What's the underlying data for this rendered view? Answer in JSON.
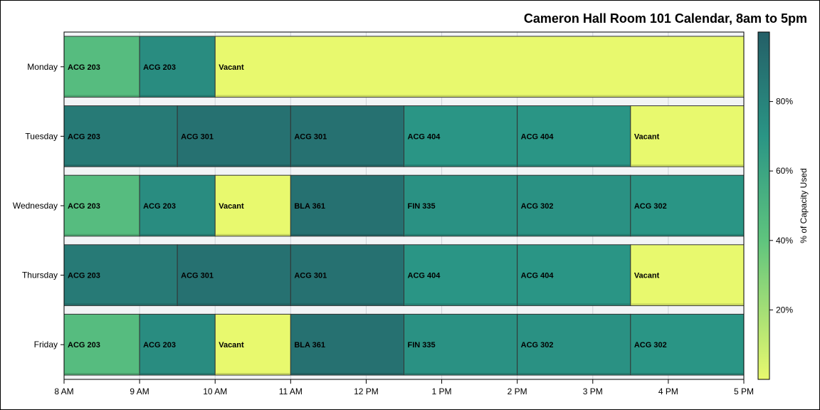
{
  "chart_data": {
    "type": "bar",
    "orientation": "horizontal-timeline",
    "title": "Cameron Hall Room 101 Calendar, 8am to 5pm",
    "xlabel": "",
    "ylabel": "",
    "x_ticks": [
      "8 AM",
      "9 AM",
      "10 AM",
      "11 AM",
      "12 PM",
      "1 PM",
      "2 PM",
      "3 PM",
      "4 PM",
      "5 PM"
    ],
    "xlim": [
      8,
      17
    ],
    "categories": [
      "Monday",
      "Tuesday",
      "Wednesday",
      "Thursday",
      "Friday"
    ],
    "colorbar": {
      "title": "% of Capacity Used",
      "ticks": [
        "20%",
        "40%",
        "60%",
        "80%"
      ],
      "range": [
        0,
        100
      ],
      "colors": [
        "#e8f96e",
        "#5fc47e",
        "#2a9585",
        "#245f67"
      ]
    },
    "days": [
      {
        "day": "Monday",
        "blocks": [
          {
            "course": "ACG 203",
            "start": 8,
            "end": 9,
            "capacity": 45
          },
          {
            "course": "ACG 203",
            "start": 9,
            "end": 10,
            "capacity": 75
          },
          {
            "course": "Vacant",
            "start": 10,
            "end": 17,
            "capacity": 0
          }
        ]
      },
      {
        "day": "Tuesday",
        "blocks": [
          {
            "course": "ACG 203",
            "start": 8,
            "end": 9.5,
            "capacity": 85
          },
          {
            "course": "ACG 301",
            "start": 9.5,
            "end": 11,
            "capacity": 90
          },
          {
            "course": "ACG 301",
            "start": 11,
            "end": 12.5,
            "capacity": 90
          },
          {
            "course": "ACG 404",
            "start": 12.5,
            "end": 14,
            "capacity": 70
          },
          {
            "course": "ACG 404",
            "start": 14,
            "end": 15.5,
            "capacity": 70
          },
          {
            "course": "Vacant",
            "start": 15.5,
            "end": 17,
            "capacity": 0
          }
        ]
      },
      {
        "day": "Wednesday",
        "blocks": [
          {
            "course": "ACG 203",
            "start": 8,
            "end": 9,
            "capacity": 45
          },
          {
            "course": "ACG 203",
            "start": 9,
            "end": 10,
            "capacity": 75
          },
          {
            "course": "Vacant",
            "start": 10,
            "end": 11,
            "capacity": 0
          },
          {
            "course": "BLA 361",
            "start": 11,
            "end": 12.5,
            "capacity": 90
          },
          {
            "course": "FIN 335",
            "start": 12.5,
            "end": 14,
            "capacity": 72
          },
          {
            "course": "ACG 302",
            "start": 14,
            "end": 15.5,
            "capacity": 72
          },
          {
            "course": "ACG 302",
            "start": 15.5,
            "end": 17,
            "capacity": 70
          }
        ]
      },
      {
        "day": "Thursday",
        "blocks": [
          {
            "course": "ACG 203",
            "start": 8,
            "end": 9.5,
            "capacity": 85
          },
          {
            "course": "ACG 301",
            "start": 9.5,
            "end": 11,
            "capacity": 90
          },
          {
            "course": "ACG 301",
            "start": 11,
            "end": 12.5,
            "capacity": 90
          },
          {
            "course": "ACG 404",
            "start": 12.5,
            "end": 14,
            "capacity": 70
          },
          {
            "course": "ACG 404",
            "start": 14,
            "end": 15.5,
            "capacity": 70
          },
          {
            "course": "Vacant",
            "start": 15.5,
            "end": 17,
            "capacity": 0
          }
        ]
      },
      {
        "day": "Friday",
        "blocks": [
          {
            "course": "ACG 203",
            "start": 8,
            "end": 9,
            "capacity": 45
          },
          {
            "course": "ACG 203",
            "start": 9,
            "end": 10,
            "capacity": 75
          },
          {
            "course": "Vacant",
            "start": 10,
            "end": 11,
            "capacity": 0
          },
          {
            "course": "BLA 361",
            "start": 11,
            "end": 12.5,
            "capacity": 90
          },
          {
            "course": "FIN 335",
            "start": 12.5,
            "end": 14,
            "capacity": 72
          },
          {
            "course": "ACG 302",
            "start": 14,
            "end": 15.5,
            "capacity": 72
          },
          {
            "course": "ACG 302",
            "start": 15.5,
            "end": 17,
            "capacity": 70
          }
        ]
      }
    ]
  }
}
